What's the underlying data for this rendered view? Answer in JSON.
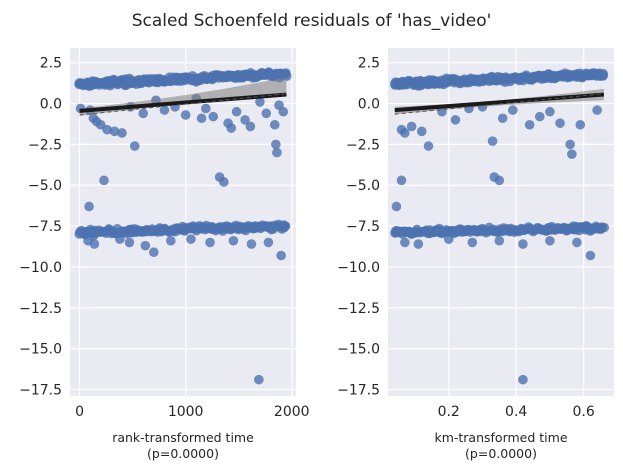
{
  "figure": {
    "title": "Scaled Schoenfeld residuals of 'has_video'"
  },
  "colors": {
    "panel_bg": "#eaeaf2",
    "grid": "#ffffff",
    "points": "#4c72b0",
    "fit": "#1a1a1a",
    "band": "#7f7f7f"
  },
  "chart_data": [
    {
      "type": "scatter",
      "title": "",
      "xlabel": "rank-transformed time",
      "xlabel_sub": "(p=0.0000)",
      "ylabel": "",
      "xlim": [
        -90,
        2040
      ],
      "ylim": [
        -17.9,
        3.4
      ],
      "xticks": [
        0,
        1000,
        2000
      ],
      "xtick_labels": [
        "0",
        "1000",
        "2000"
      ],
      "yticks": [
        2.5,
        0.0,
        -2.5,
        -5.0,
        -7.5,
        -10.0,
        -12.5,
        -15.0,
        -17.5
      ],
      "ytick_labels": [
        "2.5",
        "0.0",
        "−2.5",
        "−5.0",
        "−7.5",
        "−10.0",
        "−12.5",
        "−15.0",
        "−17.5"
      ],
      "grid": true,
      "fit_line": {
        "x": [
          0,
          1950
        ],
        "y": [
          -0.45,
          0.55
        ]
      },
      "bands": {
        "upper": {
          "x": [
            0,
            1950
          ],
          "y": [
            -0.3,
            1.6
          ]
        },
        "lower": {
          "x": [
            0,
            1950
          ],
          "y": [
            -0.75,
            0.5
          ]
        }
      },
      "clusters": {
        "upper": {
          "xmin": 0,
          "xmax": 1950,
          "y_start": 1.2,
          "y_end": 1.8,
          "spread": 0.5,
          "n": 260
        },
        "lower": {
          "xmin": 0,
          "xmax": 1950,
          "y_start": -7.9,
          "y_end": -7.5,
          "spread": 0.45,
          "n": 190
        }
      },
      "outliers": [
        [
          10,
          -0.3
        ],
        [
          100,
          -0.4
        ],
        [
          130,
          -0.9
        ],
        [
          160,
          -1.1
        ],
        [
          200,
          -1.3
        ],
        [
          260,
          -1.6
        ],
        [
          330,
          -1.7
        ],
        [
          400,
          -1.8
        ],
        [
          520,
          -2.6
        ],
        [
          90,
          -6.3
        ],
        [
          230,
          -4.7
        ],
        [
          480,
          -0.2
        ],
        [
          600,
          -0.6
        ],
        [
          720,
          0.2
        ],
        [
          800,
          -0.4
        ],
        [
          900,
          -0.2
        ],
        [
          1000,
          -0.7
        ],
        [
          1100,
          0.3
        ],
        [
          1150,
          -0.9
        ],
        [
          1190,
          -0.3
        ],
        [
          1260,
          -0.8
        ],
        [
          1320,
          -4.5
        ],
        [
          1360,
          -4.8
        ],
        [
          1400,
          -1.2
        ],
        [
          1430,
          -1.5
        ],
        [
          1480,
          -0.5
        ],
        [
          1560,
          -1.0
        ],
        [
          1610,
          -1.4
        ],
        [
          1700,
          0.1
        ],
        [
          1760,
          -0.6
        ],
        [
          1840,
          -1.3
        ],
        [
          1850,
          -2.5
        ],
        [
          1860,
          -3.0
        ],
        [
          1880,
          -0.1
        ],
        [
          1920,
          -0.5
        ],
        [
          1690,
          -16.9
        ],
        [
          1900,
          -9.3
        ],
        [
          80,
          -8.4
        ],
        [
          140,
          -8.6
        ],
        [
          380,
          -8.3
        ],
        [
          470,
          -8.5
        ],
        [
          620,
          -8.7
        ],
        [
          700,
          -9.1
        ],
        [
          860,
          -8.4
        ],
        [
          1050,
          -8.3
        ],
        [
          1230,
          -8.5
        ],
        [
          1450,
          -8.4
        ],
        [
          1620,
          -8.6
        ],
        [
          1780,
          -8.5
        ]
      ]
    },
    {
      "type": "scatter",
      "title": "",
      "xlabel": "km-transformed time",
      "xlabel_sub": "(p=0.0000)",
      "ylabel": "",
      "xlim": [
        0.02,
        0.69
      ],
      "ylim": [
        -17.9,
        3.4
      ],
      "xticks": [
        0.2,
        0.4,
        0.6
      ],
      "xtick_labels": [
        "0.2",
        "0.4",
        "0.6"
      ],
      "yticks": [
        2.5,
        0.0,
        -2.5,
        -5.0,
        -7.5,
        -10.0,
        -12.5,
        -15.0,
        -17.5
      ],
      "ytick_labels": [
        "2.5",
        "0.0",
        "−2.5",
        "−5.0",
        "−7.5",
        "−10.0",
        "−12.5",
        "−15.0",
        "−17.5"
      ],
      "grid": true,
      "fit_line": {
        "x": [
          0.04,
          0.66
        ],
        "y": [
          -0.4,
          0.55
        ]
      },
      "bands": {
        "upper": {
          "x": [
            0.04,
            0.66
          ],
          "y": [
            -0.2,
            0.9
          ]
        },
        "lower": {
          "x": [
            0.04,
            0.66
          ],
          "y": [
            -0.65,
            0.2
          ]
        }
      },
      "clusters": {
        "upper": {
          "xmin": 0.04,
          "xmax": 0.66,
          "y_start": 1.2,
          "y_end": 1.8,
          "spread": 0.5,
          "n": 260
        },
        "lower": {
          "xmin": 0.04,
          "xmax": 0.66,
          "y_start": -7.9,
          "y_end": -7.6,
          "spread": 0.45,
          "n": 190
        }
      },
      "outliers": [
        [
          0.045,
          -6.3
        ],
        [
          0.06,
          -4.7
        ],
        [
          0.06,
          -1.6
        ],
        [
          0.07,
          -1.8
        ],
        [
          0.09,
          -1.4
        ],
        [
          0.12,
          -1.7
        ],
        [
          0.14,
          -2.6
        ],
        [
          0.18,
          -0.5
        ],
        [
          0.22,
          -1.0
        ],
        [
          0.26,
          -0.3
        ],
        [
          0.3,
          -0.2
        ],
        [
          0.33,
          -2.3
        ],
        [
          0.335,
          -4.5
        ],
        [
          0.35,
          -4.7
        ],
        [
          0.36,
          -0.9
        ],
        [
          0.39,
          -0.4
        ],
        [
          0.42,
          -16.9
        ],
        [
          0.44,
          -1.3
        ],
        [
          0.47,
          -0.8
        ],
        [
          0.5,
          -0.5
        ],
        [
          0.53,
          -1.2
        ],
        [
          0.56,
          -2.5
        ],
        [
          0.565,
          -3.1
        ],
        [
          0.59,
          -1.3
        ],
        [
          0.62,
          -9.3
        ],
        [
          0.64,
          -0.4
        ],
        [
          0.07,
          -8.5
        ],
        [
          0.11,
          -8.6
        ],
        [
          0.2,
          -8.3
        ],
        [
          0.27,
          -8.5
        ],
        [
          0.35,
          -8.4
        ],
        [
          0.42,
          -8.6
        ],
        [
          0.5,
          -8.4
        ],
        [
          0.58,
          -8.5
        ]
      ]
    }
  ]
}
